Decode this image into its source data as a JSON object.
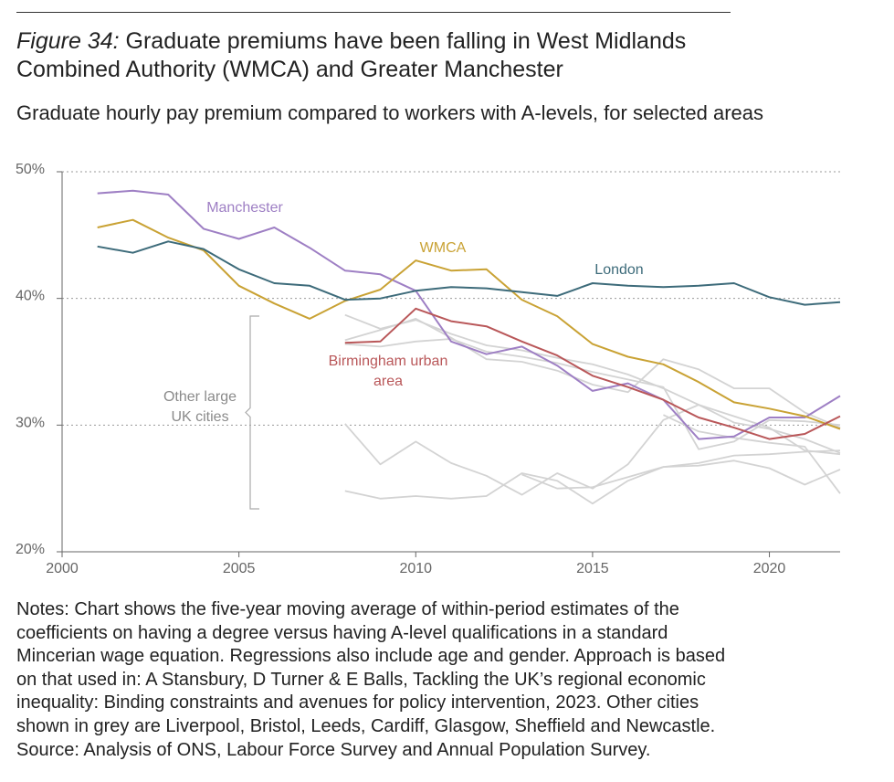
{
  "figure": {
    "label": "Figure 34:",
    "title": "Graduate premiums have been falling in West Midlands Combined Authority (WMCA) and Greater Manchester",
    "subtitle": "Graduate hourly pay premium compared to workers with A-levels, for selected areas"
  },
  "notes": [
    "Notes: Chart shows the five-year moving average of within-period estimates of the",
    "coefficients on having a degree versus having A-level qualifications in a standard",
    "Mincerian wage equation. Regressions also include age and gender. Approach is based",
    "on that used in: A Stansbury, D Turner & E Balls, Tackling the UK’s regional economic",
    "inequality: Binding constraints and avenues for policy intervention, 2023. Other cities",
    "shown in grey are Liverpool, Bristol, Leeds, Cardiff, Glasgow, Sheffield and Newcastle.",
    "Source: Analysis of ONS, Labour Force Survey and Annual Population Survey."
  ],
  "chart_data": {
    "type": "line",
    "xlim": [
      2000,
      2022
    ],
    "ylim": [
      20,
      50
    ],
    "x_ticks": [
      2000,
      2005,
      2010,
      2015,
      2020
    ],
    "y_ticks": [
      20,
      30,
      40,
      50
    ],
    "y_tick_labels": [
      "20%",
      "30%",
      "40%",
      "50%"
    ],
    "grid": "horizontal dotted",
    "annotations": {
      "other_cities_label": [
        "Other large",
        "UK cities"
      ]
    },
    "series": [
      {
        "name": "Manchester",
        "color": "#9e7fc4",
        "label_lines": [
          "Manchester"
        ],
        "x": [
          2001,
          2002,
          2003,
          2004,
          2005,
          2006,
          2007,
          2008,
          2009,
          2010,
          2011,
          2012,
          2013,
          2014,
          2015,
          2016,
          2017,
          2018,
          2019,
          2020,
          2021,
          2022
        ],
        "values": [
          48.3,
          48.5,
          48.2,
          45.5,
          44.7,
          45.6,
          44.0,
          42.2,
          41.9,
          40.6,
          36.6,
          35.6,
          36.2,
          34.7,
          32.7,
          33.3,
          32.0,
          28.9,
          29.1,
          30.6,
          30.6,
          32.3
        ]
      },
      {
        "name": "WMCA",
        "color": "#c9a234",
        "label_lines": [
          "WMCA"
        ],
        "x": [
          2001,
          2002,
          2003,
          2004,
          2005,
          2006,
          2007,
          2008,
          2009,
          2010,
          2011,
          2012,
          2013,
          2014,
          2015,
          2016,
          2017,
          2018,
          2019,
          2020,
          2021,
          2022
        ],
        "values": [
          45.6,
          46.2,
          44.8,
          43.8,
          41.0,
          39.6,
          38.4,
          39.8,
          40.7,
          43.0,
          42.2,
          42.3,
          39.9,
          38.6,
          36.4,
          35.4,
          34.8,
          33.4,
          31.8,
          31.3,
          30.7,
          29.7
        ]
      },
      {
        "name": "London",
        "color": "#3d6b7a",
        "label_lines": [
          "London"
        ],
        "x": [
          2001,
          2002,
          2003,
          2004,
          2005,
          2006,
          2007,
          2008,
          2009,
          2010,
          2011,
          2012,
          2013,
          2014,
          2015,
          2016,
          2017,
          2018,
          2019,
          2020,
          2021,
          2022
        ],
        "values": [
          44.1,
          43.6,
          44.5,
          43.9,
          42.3,
          41.2,
          41.0,
          39.9,
          40.0,
          40.6,
          40.9,
          40.8,
          40.5,
          40.2,
          41.2,
          41.0,
          40.9,
          41.0,
          41.2,
          40.1,
          39.5,
          39.7
        ]
      },
      {
        "name": "Birmingham urban area",
        "color": "#b95759",
        "label_lines": [
          "Birmingham urban",
          "area"
        ],
        "x": [
          2008,
          2009,
          2010,
          2011,
          2012,
          2013,
          2014,
          2015,
          2016,
          2017,
          2018,
          2019,
          2020,
          2021,
          2022
        ],
        "values": [
          36.5,
          36.6,
          39.2,
          38.2,
          37.8,
          36.6,
          35.5,
          33.9,
          33.0,
          32.0,
          30.6,
          29.8,
          28.9,
          29.3,
          30.7
        ]
      },
      {
        "name": "",
        "color": "#d3d3d3",
        "grey": true,
        "x": [
          2008,
          2009,
          2010,
          2011,
          2012,
          2013,
          2014,
          2015,
          2016,
          2017,
          2018,
          2019,
          2020,
          2021,
          2022
        ],
        "values": [
          38.7,
          37.6,
          38.3,
          37.2,
          36.3,
          35.9,
          35.3,
          34.8,
          34.0,
          32.9,
          31.6,
          30.2,
          29.7,
          28.9,
          27.8
        ]
      },
      {
        "name": "",
        "color": "#d3d3d3",
        "grey": true,
        "x": [
          2008,
          2009,
          2010,
          2011,
          2012,
          2013,
          2014,
          2015,
          2016,
          2017,
          2018,
          2019,
          2020,
          2021,
          2022
        ],
        "values": [
          36.7,
          37.5,
          38.4,
          36.9,
          35.2,
          35.0,
          34.3,
          33.2,
          32.6,
          35.2,
          34.4,
          32.9,
          32.9,
          31.0,
          29.8
        ]
      },
      {
        "name": "",
        "color": "#d3d3d3",
        "grey": true,
        "x": [
          2008,
          2009,
          2010,
          2011,
          2012,
          2013,
          2014,
          2015,
          2016,
          2017,
          2018,
          2019,
          2020,
          2021,
          2022
        ],
        "values": [
          36.4,
          36.2,
          36.6,
          36.8,
          35.8,
          35.4,
          34.9,
          34.2,
          33.6,
          33.0,
          28.1,
          28.7,
          30.4,
          30.3,
          30.0
        ]
      },
      {
        "name": "",
        "color": "#d3d3d3",
        "grey": true,
        "x": [
          2008,
          2009,
          2010,
          2011,
          2012,
          2013,
          2014,
          2015,
          2016,
          2017,
          2018,
          2019,
          2020,
          2021,
          2022
        ],
        "values": [
          30.1,
          26.9,
          28.7,
          27.0,
          26.0,
          24.5,
          26.2,
          25.0,
          26.9,
          30.4,
          31.6,
          30.7,
          29.8,
          28.0,
          27.7
        ]
      },
      {
        "name": "",
        "color": "#d3d3d3",
        "grey": true,
        "x": [
          2008,
          2009,
          2010,
          2011,
          2012,
          2013,
          2014,
          2015,
          2016,
          2017,
          2018,
          2019,
          2020,
          2021,
          2022
        ],
        "values": [
          24.8,
          24.2,
          24.4,
          24.2,
          24.4,
          26.2,
          25.6,
          23.8,
          25.6,
          26.7,
          26.8,
          27.2,
          26.6,
          25.3,
          26.5
        ]
      },
      {
        "name": "",
        "color": "#d3d3d3",
        "grey": true,
        "x": [
          2013,
          2014,
          2015,
          2016,
          2017,
          2018,
          2019,
          2020,
          2021,
          2022
        ],
        "values": [
          26.1,
          25.0,
          25.1,
          25.9,
          26.7,
          27.0,
          27.6,
          27.7,
          27.9,
          28.0
        ]
      },
      {
        "name": "",
        "color": "#d3d3d3",
        "grey": true,
        "x": [
          2017,
          2018,
          2019,
          2020,
          2021,
          2022
        ],
        "values": [
          30.8,
          29.5,
          29.0,
          28.6,
          28.3,
          24.6
        ]
      }
    ]
  }
}
